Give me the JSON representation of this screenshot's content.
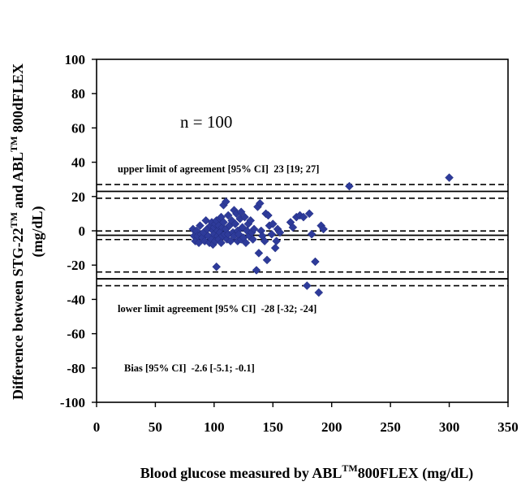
{
  "chart_data": {
    "type": "scatter",
    "ylabel": "Difference between STG-22™ and ABL™ 800dFLEX (mg/dL)",
    "ylabel_parts": {
      "line1_a": "Difference between STG-22",
      "line1_sup1": "TM",
      "line1_b": " and ABL",
      "line1_sup2": "TM",
      "line1_c": " 800dFLEX",
      "line2": "(mg/dL)"
    },
    "xlabel": "Blood glucose measured by ABL™800FLEX (mg/dL)",
    "xlabel_parts": {
      "a": "Blood glucose measured by ABL",
      "sup": "TM",
      "b": "800FLEX (mg/dL)"
    },
    "xlim": [
      0,
      350
    ],
    "ylim": [
      -100,
      100
    ],
    "x_ticks": [
      "0",
      "50",
      "100",
      "150",
      "200",
      "250",
      "300",
      "350"
    ],
    "y_ticks": [
      "100",
      "80",
      "60",
      "40",
      "20",
      "0",
      "-20",
      "-40",
      "-60",
      "-80",
      "-100"
    ],
    "grid": false,
    "marker_color": "#2e3b9a",
    "annotations": {
      "n": "n = 100",
      "upper": "upper limit of agreement [95% CI]  23 [19; 27]",
      "lower": "lower limit agreement [95% CI]  -28 [-32; -24]",
      "bias": "Bias [95% CI]  -2.6 [-5.1; -0.1]"
    },
    "lines": {
      "upper_limit": 23,
      "upper_ci": [
        19,
        27
      ],
      "bias": -2.6,
      "bias_ci": [
        -5.1,
        -0.1
      ],
      "lower_limit": -28,
      "lower_ci": [
        -32,
        -24
      ]
    },
    "points": [
      [
        82,
        1
      ],
      [
        83,
        -3
      ],
      [
        84,
        -6
      ],
      [
        85,
        0
      ],
      [
        86,
        -3
      ],
      [
        87,
        -7
      ],
      [
        88,
        3
      ],
      [
        89,
        -2
      ],
      [
        90,
        -4
      ],
      [
        91,
        -1
      ],
      [
        92,
        -6
      ],
      [
        93,
        6
      ],
      [
        94,
        1
      ],
      [
        95,
        -3
      ],
      [
        96,
        -7
      ],
      [
        97,
        3
      ],
      [
        98,
        5
      ],
      [
        98,
        -5
      ],
      [
        99,
        0
      ],
      [
        99,
        -8
      ],
      [
        100,
        2
      ],
      [
        100,
        -2
      ],
      [
        101,
        4
      ],
      [
        101,
        -6
      ],
      [
        102,
        6
      ],
      [
        102,
        -21
      ],
      [
        103,
        0
      ],
      [
        103,
        -3
      ],
      [
        104,
        3
      ],
      [
        104,
        -5
      ],
      [
        105,
        7
      ],
      [
        105,
        -1
      ],
      [
        106,
        8
      ],
      [
        106,
        -7
      ],
      [
        107,
        2
      ],
      [
        107,
        -3
      ],
      [
        108,
        15
      ],
      [
        108,
        5
      ],
      [
        109,
        -2
      ],
      [
        110,
        17
      ],
      [
        110,
        1
      ],
      [
        111,
        -5
      ],
      [
        112,
        9
      ],
      [
        112,
        -2
      ],
      [
        113,
        3
      ],
      [
        114,
        -6
      ],
      [
        115,
        6
      ],
      [
        116,
        -1
      ],
      [
        117,
        12
      ],
      [
        117,
        -3
      ],
      [
        118,
        4
      ],
      [
        119,
        10
      ],
      [
        120,
        0
      ],
      [
        120,
        -6
      ],
      [
        121,
        -2
      ],
      [
        122,
        7
      ],
      [
        123,
        11
      ],
      [
        123,
        -5
      ],
      [
        124,
        2
      ],
      [
        125,
        -4
      ],
      [
        126,
        8
      ],
      [
        127,
        -7
      ],
      [
        128,
        0
      ],
      [
        129,
        4
      ],
      [
        130,
        -3
      ],
      [
        131,
        6
      ],
      [
        132,
        -1
      ],
      [
        133,
        -5
      ],
      [
        134,
        1
      ],
      [
        136,
        -23
      ],
      [
        137,
        14
      ],
      [
        138,
        -13
      ],
      [
        139,
        16
      ],
      [
        140,
        0
      ],
      [
        141,
        -3
      ],
      [
        143,
        -6
      ],
      [
        144,
        10
      ],
      [
        145,
        -17
      ],
      [
        146,
        9
      ],
      [
        147,
        3
      ],
      [
        149,
        -2
      ],
      [
        150,
        4
      ],
      [
        152,
        -10
      ],
      [
        153,
        -6
      ],
      [
        154,
        1
      ],
      [
        156,
        -1
      ],
      [
        165,
        5
      ],
      [
        167,
        2
      ],
      [
        170,
        8
      ],
      [
        173,
        9
      ],
      [
        176,
        8
      ],
      [
        179,
        -32
      ],
      [
        181,
        10
      ],
      [
        183,
        -2
      ],
      [
        186,
        -18
      ],
      [
        189,
        -36
      ],
      [
        191,
        3
      ],
      [
        193,
        1
      ],
      [
        215,
        26
      ],
      [
        300,
        31
      ]
    ]
  }
}
